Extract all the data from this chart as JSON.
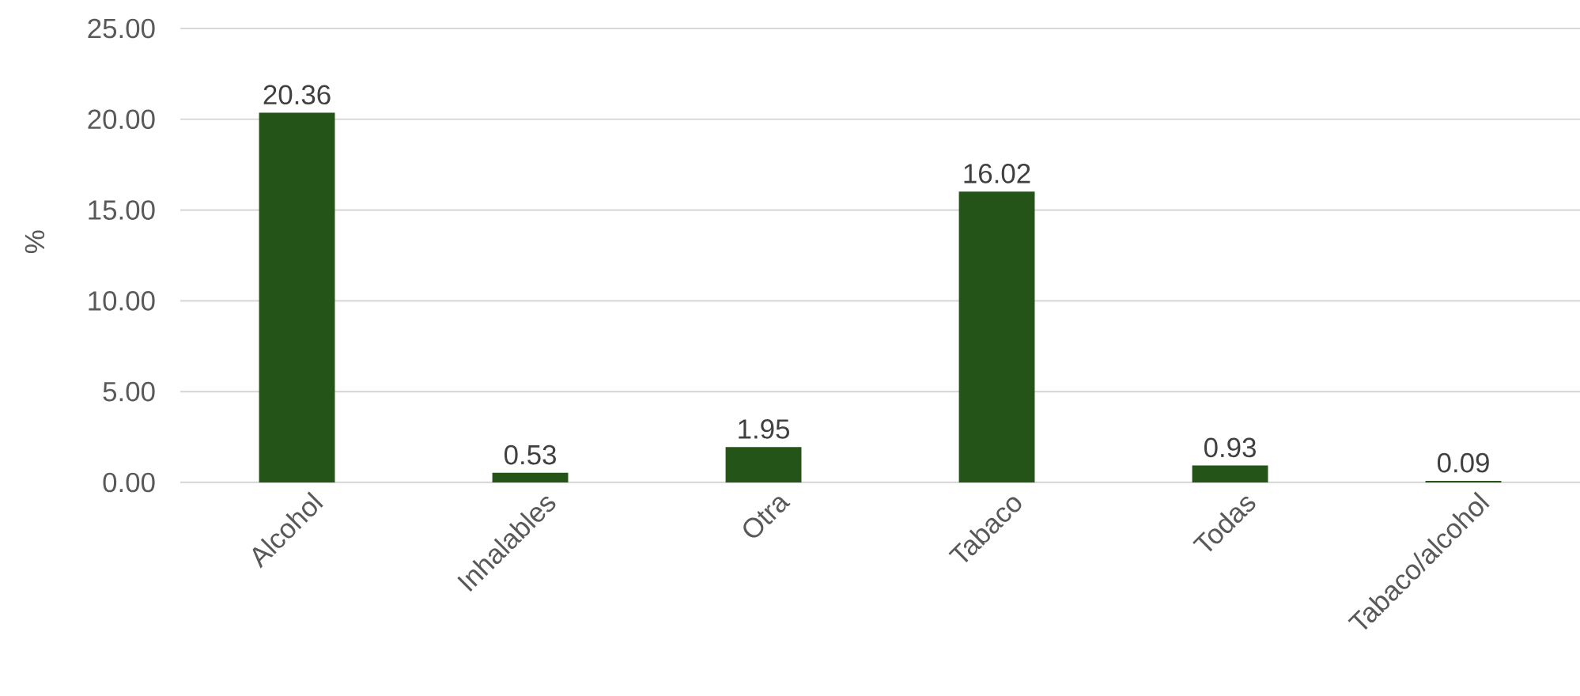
{
  "chart_data": {
    "type": "bar",
    "ylabel": "%",
    "categories": [
      "Alcohol",
      "Inhalables",
      "Otra",
      "Tabaco",
      "Todas",
      "Tabaco/alcohol"
    ],
    "values": [
      20.36,
      0.53,
      1.95,
      16.02,
      0.93,
      0.09
    ],
    "color": "#255419",
    "ylim": [
      0,
      25
    ],
    "yticks": [
      {
        "value": 0,
        "label": "0.00"
      },
      {
        "value": 5,
        "label": "5.00"
      },
      {
        "value": 10,
        "label": "10.00"
      },
      {
        "value": 15,
        "label": "15.00"
      },
      {
        "value": 20,
        "label": "20.00"
      },
      {
        "value": 25,
        "label": "25.00"
      }
    ],
    "grid": "y",
    "data_labels": true
  }
}
